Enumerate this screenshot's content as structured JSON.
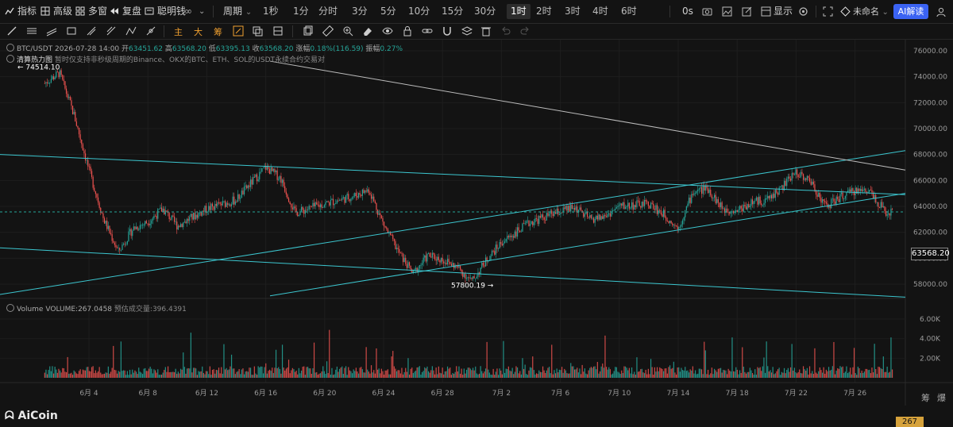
{
  "topbar": {
    "indicators": "指标",
    "advanced": "高级",
    "multi_window": "多窗",
    "replay": "复盘",
    "smart_money": "聪明钱",
    "period": "周期",
    "timeframes": [
      "1秒",
      "1分",
      "分时",
      "3分",
      "5分",
      "10分",
      "15分",
      "30分",
      "1时",
      "2时",
      "3时",
      "4时",
      "6时"
    ],
    "active_timeframe": "1时",
    "zero_s": "0s",
    "display": "显示",
    "layout_name": "未命名",
    "ai_read": "AI解读"
  },
  "toolbar2": {
    "red_labels": [
      "主",
      "大",
      "筹"
    ]
  },
  "legend": {
    "symbol_time": "BTC/USDT  2026-07-28 14:00",
    "open_label": "开",
    "open": "63451.62",
    "high_label": "高",
    "high": "63568.20",
    "low_label": "低",
    "low": "63395.13",
    "close_label": "收",
    "close": "63568.20",
    "change_label": "涨幅",
    "change": "0.18%(116.59)",
    "amp_label": "振幅",
    "amp": "0.27%",
    "heatmap": "清算热力图",
    "heatmap_note": "暂时仅支持非秒级周期的Binance、OKX的BTC、ETH、SOL的USDT永续合约交易对"
  },
  "volume_legend": {
    "label": "Volume",
    "value": "VOLUME:267.0458",
    "estimate": "预估成交量:396.4391"
  },
  "price_axis": [
    "76000.00",
    "74000.00",
    "72000.00",
    "70000.00",
    "68000.00",
    "66000.00",
    "64000.00",
    "62000.00",
    "60000.00",
    "58000.00"
  ],
  "volume_axis": [
    "6.00K",
    "4.00K",
    "2.00K"
  ],
  "date_axis": [
    "6月 4",
    "6月 8",
    "6月 12",
    "6月 16",
    "6月 20",
    "6月 24",
    "6月 28",
    "7月 2",
    "7月 6",
    "7月 10",
    "7月 14",
    "7月 18",
    "7月 22",
    "7月 26"
  ],
  "annotations": {
    "high_label": "← 74514.10",
    "low_label": "57800.19 →"
  },
  "current_price": "63568.20",
  "current_volume": "267",
  "bottom_right": [
    "筹",
    "爆"
  ],
  "logo": "AiCoin",
  "colors": {
    "up": "#26a69a",
    "down": "#ef5350",
    "trendline": "#3cc6cf",
    "accent": "#3b63f3"
  },
  "chart_data": {
    "type": "candlestick",
    "symbol": "BTC/USDT",
    "interval": "1h",
    "ylim": [
      57000,
      77000
    ],
    "x_range": [
      "6月 1",
      "7月 28"
    ],
    "key_points": [
      {
        "x": "6月 2",
        "y": 74514.1,
        "label": "74514.10"
      },
      {
        "x": "6月 30",
        "y": 57800.19,
        "label": "57800.19"
      }
    ],
    "close_path": [
      {
        "x": "6月 1",
        "y": 73500
      },
      {
        "x": "6月 2",
        "y": 74300
      },
      {
        "x": "6月 3",
        "y": 71000
      },
      {
        "x": "6月 4",
        "y": 66800
      },
      {
        "x": "6月 5",
        "y": 63000
      },
      {
        "x": "6月 6",
        "y": 60500
      },
      {
        "x": "6月 7",
        "y": 62300
      },
      {
        "x": "6月 8",
        "y": 62800
      },
      {
        "x": "6月 9",
        "y": 63800
      },
      {
        "x": "6月 10",
        "y": 62500
      },
      {
        "x": "6月 12",
        "y": 63800
      },
      {
        "x": "6月 14",
        "y": 64500
      },
      {
        "x": "6月 15",
        "y": 65800
      },
      {
        "x": "6月 16",
        "y": 67000
      },
      {
        "x": "6月 17",
        "y": 66200
      },
      {
        "x": "6月 18",
        "y": 63500
      },
      {
        "x": "6月 20",
        "y": 64200
      },
      {
        "x": "6月 22",
        "y": 64800
      },
      {
        "x": "6月 23",
        "y": 65300
      },
      {
        "x": "6月 24",
        "y": 62600
      },
      {
        "x": "6月 25",
        "y": 60500
      },
      {
        "x": "6月 26",
        "y": 58800
      },
      {
        "x": "6月 27",
        "y": 60200
      },
      {
        "x": "6月 28",
        "y": 59900
      },
      {
        "x": "6月 29",
        "y": 59300
      },
      {
        "x": "6月 30",
        "y": 58200
      },
      {
        "x": "7月 1",
        "y": 59900
      },
      {
        "x": "7月 2",
        "y": 61200
      },
      {
        "x": "7月 4",
        "y": 62800
      },
      {
        "x": "7月 5",
        "y": 63200
      },
      {
        "x": "7月 6",
        "y": 63600
      },
      {
        "x": "7月 7",
        "y": 63900
      },
      {
        "x": "7月 8",
        "y": 63000
      },
      {
        "x": "7月 9",
        "y": 63200
      },
      {
        "x": "7月 10",
        "y": 64000
      },
      {
        "x": "7月 12",
        "y": 64200
      },
      {
        "x": "7月 13",
        "y": 63400
      },
      {
        "x": "7月 14",
        "y": 62300
      },
      {
        "x": "7月 15",
        "y": 65100
      },
      {
        "x": "7月 16",
        "y": 65400
      },
      {
        "x": "7月 17",
        "y": 63800
      },
      {
        "x": "7月 18",
        "y": 63700
      },
      {
        "x": "7月 19",
        "y": 64300
      },
      {
        "x": "7月 20",
        "y": 64500
      },
      {
        "x": "7月 21",
        "y": 65400
      },
      {
        "x": "7月 22",
        "y": 66700
      },
      {
        "x": "7月 23",
        "y": 65900
      },
      {
        "x": "7月 24",
        "y": 64000
      },
      {
        "x": "7月 25",
        "y": 64700
      },
      {
        "x": "7月 26",
        "y": 65200
      },
      {
        "x": "7月 27",
        "y": 65300
      },
      {
        "x": "7月 28",
        "y": 63568
      }
    ]
  }
}
